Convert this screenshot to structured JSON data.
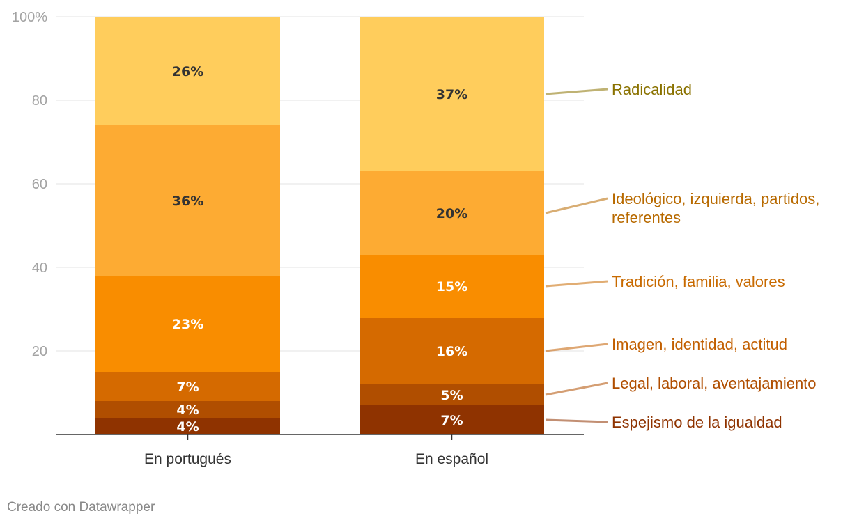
{
  "chart_data": {
    "type": "bar",
    "stacked": true,
    "categories": [
      "En portugués",
      "En español"
    ],
    "ylim": [
      0,
      100
    ],
    "yticks": [
      {
        "value": 0,
        "label": ""
      },
      {
        "value": 20,
        "label": "20"
      },
      {
        "value": 40,
        "label": "40"
      },
      {
        "value": 60,
        "label": "60"
      },
      {
        "value": 80,
        "label": "80"
      },
      {
        "value": 100,
        "label": "100%"
      }
    ],
    "grid": true,
    "legend_position": "right",
    "series": [
      {
        "name": "Espejismo de la igualdad",
        "color": "#8f3300",
        "label_color": "#8f3300",
        "text_color": "#ffffff",
        "values": [
          4,
          7
        ],
        "labels": [
          "4%",
          "7%"
        ]
      },
      {
        "name": "Legal, laboral, aventajamiento",
        "color": "#b04e00",
        "label_color": "#b04e00",
        "text_color": "#ffffff",
        "values": [
          4,
          5
        ],
        "labels": [
          "4%",
          "5%"
        ]
      },
      {
        "name": "Imagen, identidad, actitud",
        "color": "#d56a00",
        "label_color": "#c25f00",
        "text_color": "#ffffff",
        "values": [
          7,
          16
        ],
        "labels": [
          "7%",
          "16%"
        ]
      },
      {
        "name": "Tradición, familia, valores",
        "color": "#f98d00",
        "label_color": "#c86a00",
        "text_color": "#ffffff",
        "values": [
          23,
          15
        ],
        "labels": [
          "23%",
          "15%"
        ]
      },
      {
        "name": "Ideológico, izquierda, partidos, referentes",
        "color": "#fdab33",
        "label_color": "#b86a00",
        "text_color": "#333333",
        "values": [
          36,
          20
        ],
        "labels": [
          "36%",
          "20%"
        ]
      },
      {
        "name": "Radicalidad",
        "color": "#ffcd5c",
        "label_color": "#8a7200",
        "text_color": "#333333",
        "values": [
          26,
          37
        ],
        "labels": [
          "26%",
          "37%"
        ]
      }
    ]
  },
  "footer": {
    "credit": "Creado con Datawrapper"
  }
}
